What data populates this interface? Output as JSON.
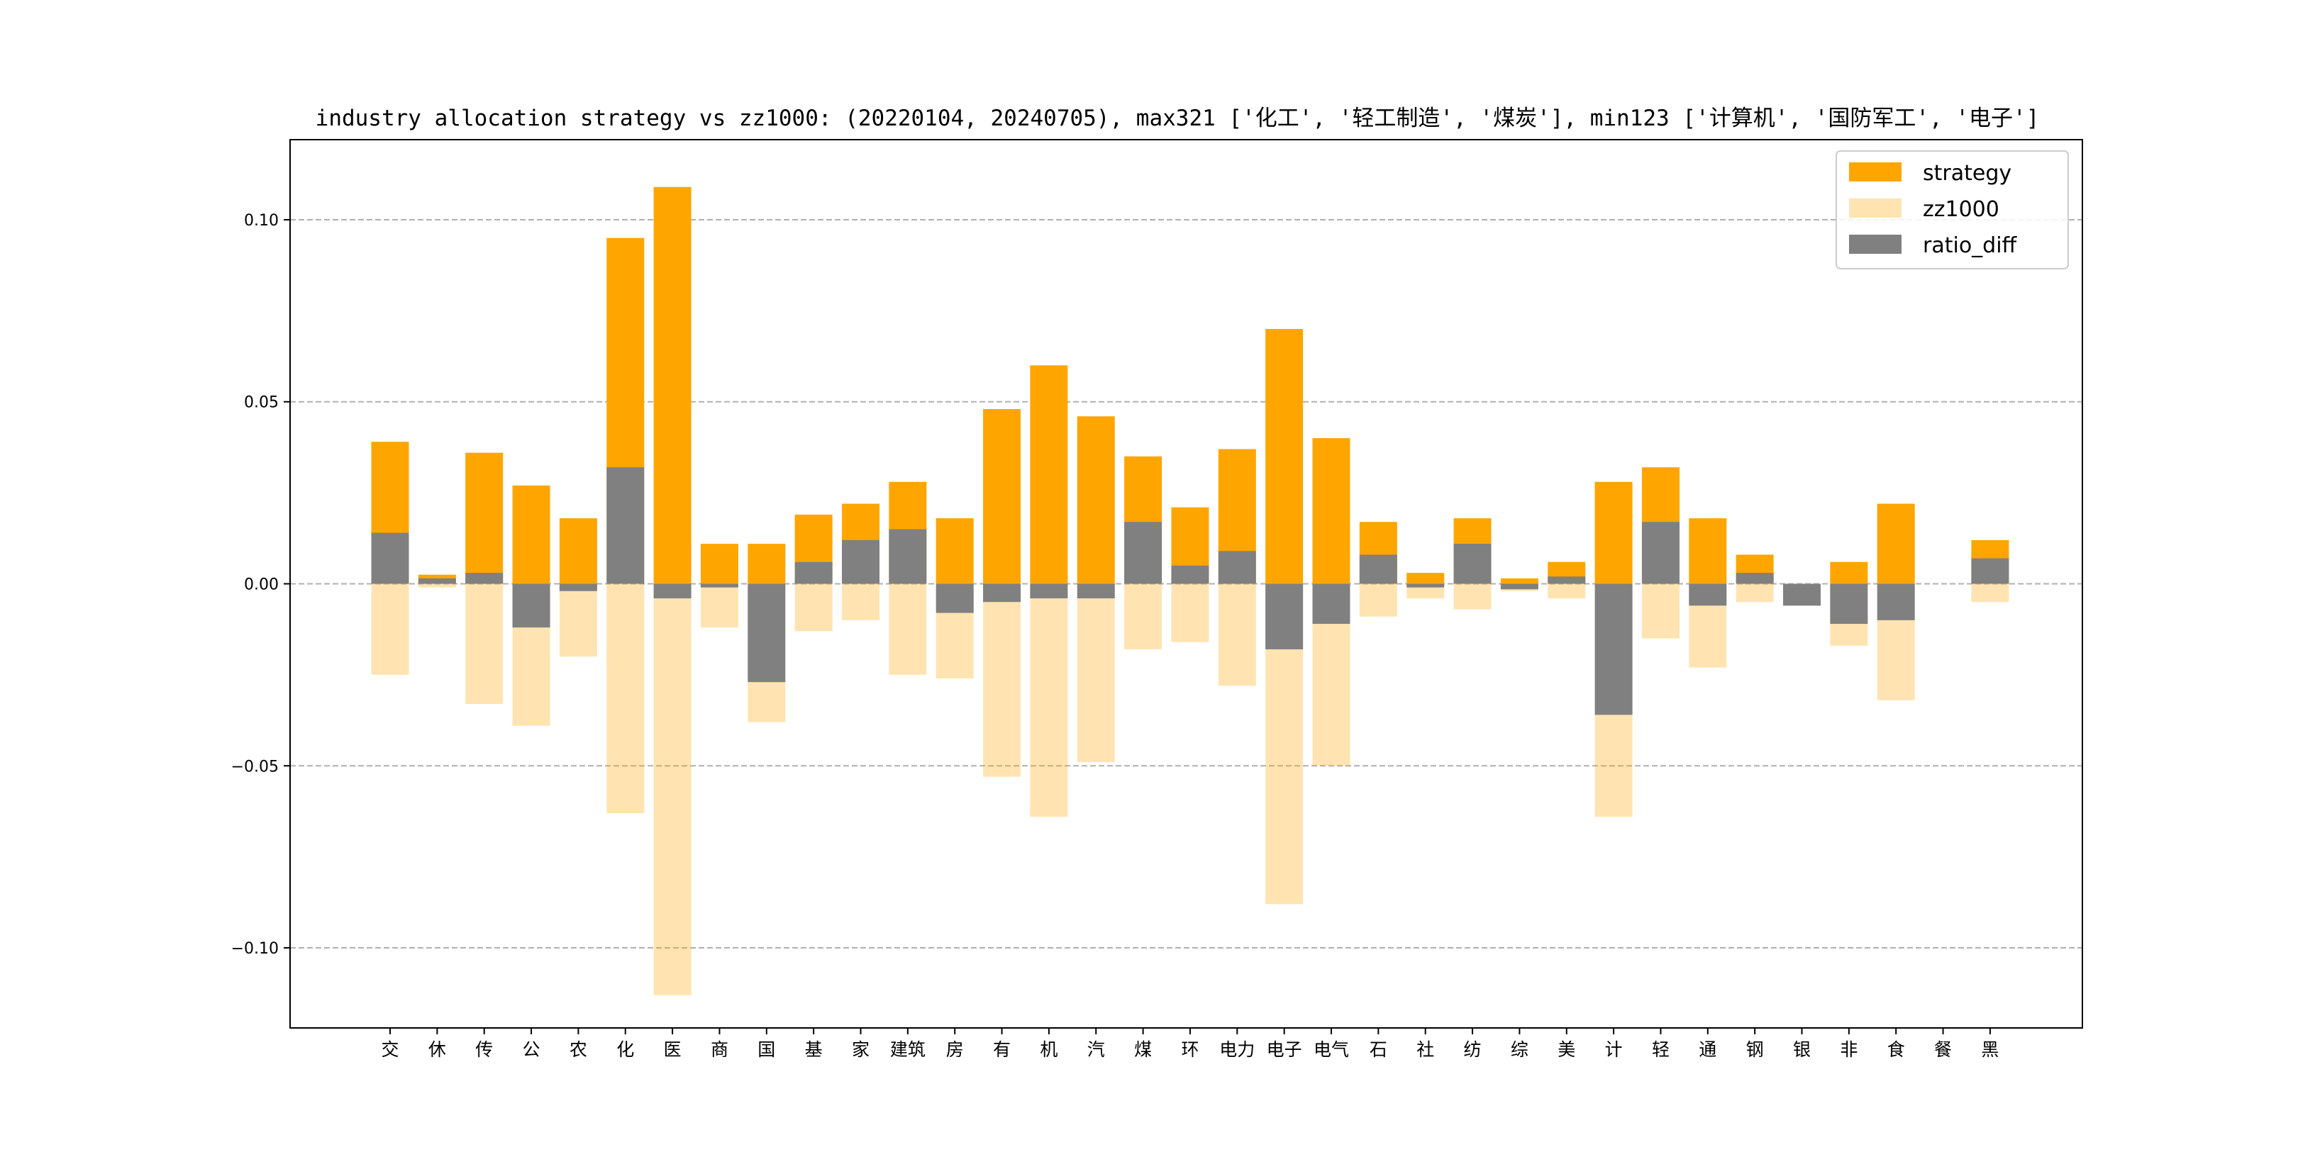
{
  "chart_data": {
    "type": "bar",
    "title": "industry allocation strategy vs zz1000: (20220104, 20240705), max321 ['化工', '轻工制造', '煤炭'], min123 ['计算机', '国防军工', '电子']",
    "xlabel": "",
    "ylabel": "",
    "ylim": [
      -0.122,
      0.122
    ],
    "yticks": [
      0.1,
      0.05,
      0.0,
      -0.05,
      -0.1
    ],
    "ytick_labels": [
      "0.10",
      "0.05",
      "0.00",
      "−0.05",
      "−0.10"
    ],
    "grid": "horizontal dashed",
    "legend_position": "top-right",
    "categories": [
      "交",
      "休",
      "传",
      "公",
      "农",
      "化",
      "医",
      "商",
      "国",
      "基",
      "家",
      "建筑",
      "房",
      "有",
      "机",
      "汽",
      "煤",
      "环",
      "电力",
      "电子",
      "电气",
      "石",
      "社",
      "纺",
      "综",
      "美",
      "计",
      "轻",
      "通",
      "钢",
      "银",
      "非",
      "食",
      "餐",
      "黑"
    ],
    "series": [
      {
        "name": "strategy",
        "color": "#ffa500",
        "values": [
          0.039,
          0.0025,
          0.036,
          0.027,
          0.018,
          0.095,
          0.109,
          0.011,
          0.011,
          0.019,
          0.022,
          0.028,
          0.018,
          0.048,
          0.06,
          0.046,
          0.035,
          0.021,
          0.037,
          0.07,
          0.04,
          0.017,
          0.003,
          0.018,
          0.0015,
          0.006,
          0.028,
          0.032,
          0.018,
          0.008,
          0.0,
          0.006,
          0.022,
          0.0,
          0.012
        ]
      },
      {
        "name": "zz1000",
        "color": "#ffa500",
        "opacity": 0.3,
        "values": [
          -0.025,
          -0.001,
          -0.033,
          -0.039,
          -0.02,
          -0.063,
          -0.113,
          -0.012,
          -0.038,
          -0.013,
          -0.01,
          -0.025,
          -0.026,
          -0.053,
          -0.064,
          -0.049,
          -0.018,
          -0.016,
          -0.028,
          -0.088,
          -0.05,
          -0.009,
          -0.004,
          -0.007,
          -0.002,
          -0.004,
          -0.064,
          -0.015,
          -0.023,
          -0.005,
          -0.005,
          -0.017,
          -0.032,
          0.0,
          -0.005
        ]
      },
      {
        "name": "ratio_diff",
        "color": "#808080",
        "values": [
          0.014,
          0.0015,
          0.003,
          -0.012,
          -0.002,
          0.032,
          -0.004,
          -0.001,
          -0.027,
          0.006,
          0.012,
          0.015,
          -0.008,
          -0.005,
          -0.004,
          -0.004,
          0.017,
          0.005,
          0.009,
          -0.018,
          -0.011,
          0.008,
          -0.001,
          0.011,
          -0.0015,
          0.002,
          -0.036,
          0.017,
          -0.006,
          0.003,
          -0.006,
          -0.011,
          -0.01,
          0.0,
          0.007
        ]
      }
    ]
  }
}
